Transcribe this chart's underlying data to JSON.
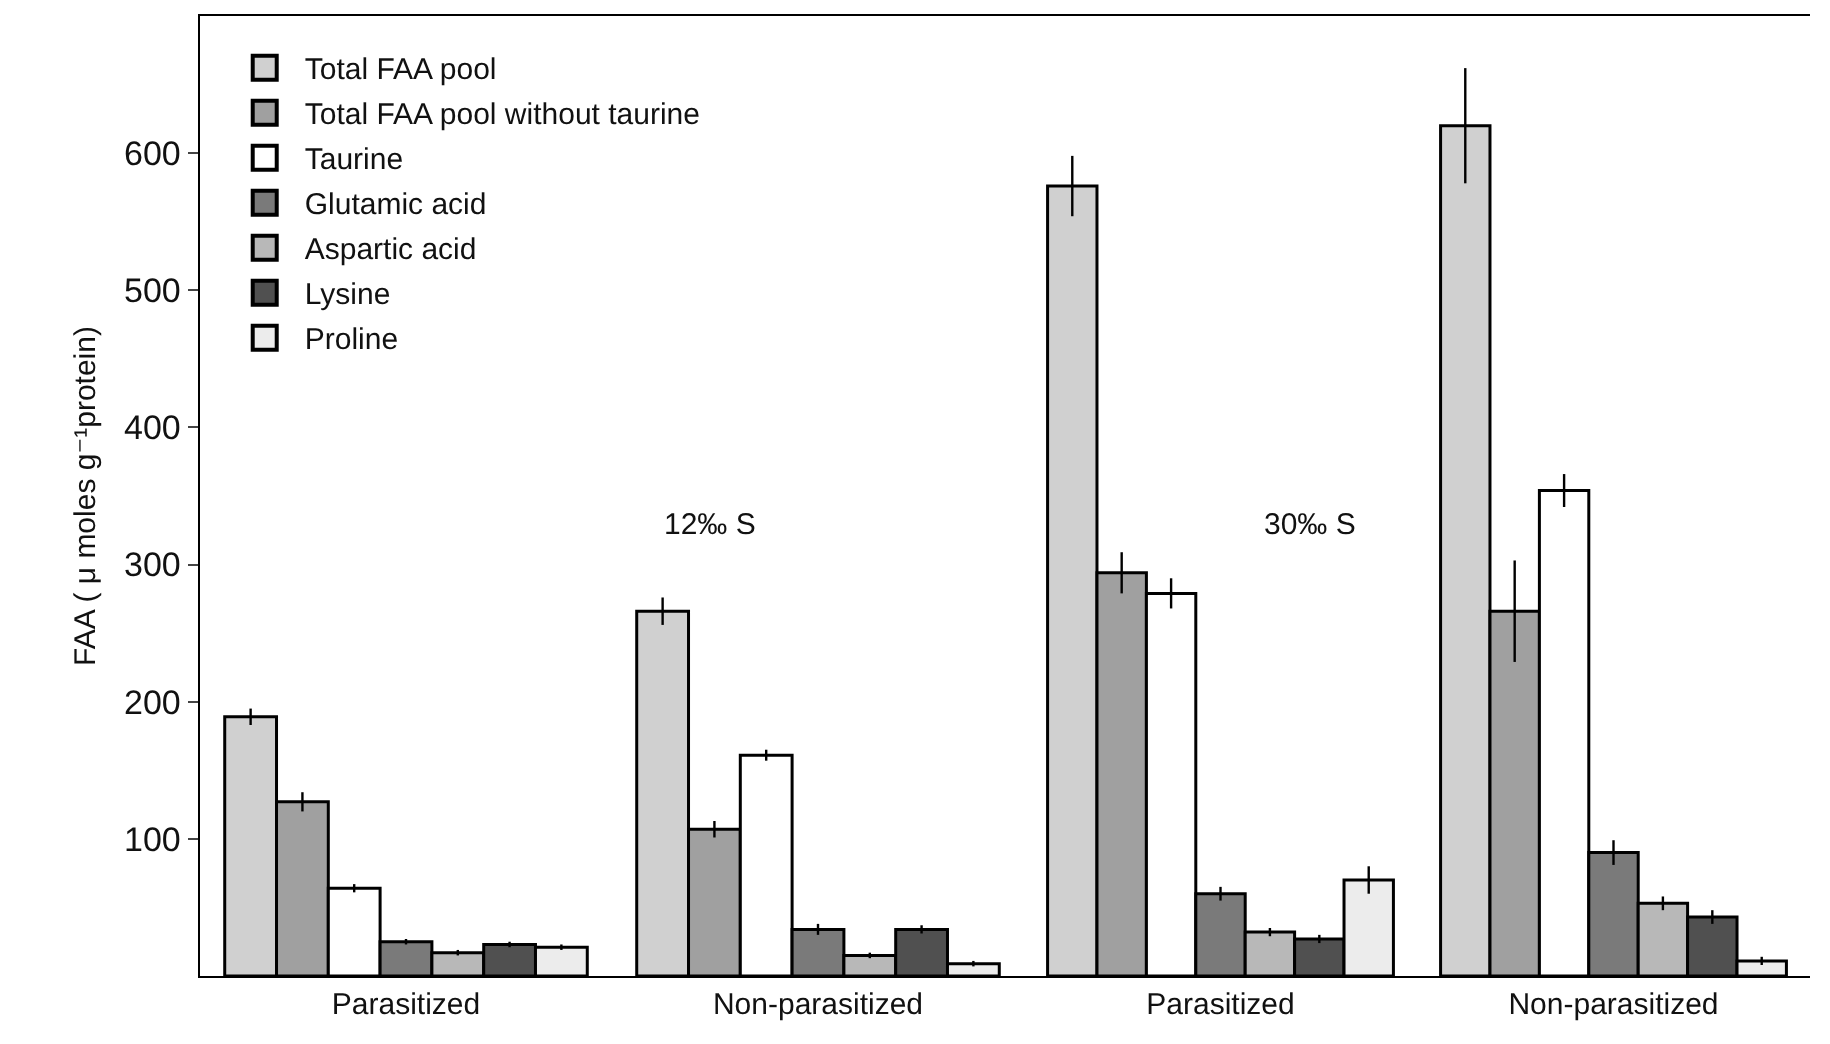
{
  "chart_data": [
    {
      "type": "bar",
      "categories": [
        "Parasitized",
        "Non-parasitized"
      ],
      "ylabel": "FAA ( μ moles g⁻¹protein)",
      "ylim": [
        0,
        700
      ],
      "yticks": [
        100,
        200,
        300,
        400,
        500,
        600
      ],
      "grid": false,
      "legend": "top left",
      "annotations": [
        "12‰ S"
      ],
      "series": [
        {
          "name": "Total FAA pool",
          "color": "#d0d0d0",
          "values": [
            189,
            266
          ],
          "errors": [
            6,
            10
          ]
        },
        {
          "name": "Total FAA pool without taurine",
          "color": "#a0a0a0",
          "values": [
            127,
            107
          ],
          "errors": [
            7,
            6
          ]
        },
        {
          "name": "Taurine",
          "color": "#ffffff",
          "values": [
            64,
            161
          ],
          "errors": [
            3,
            4
          ]
        },
        {
          "name": "Glutamic acid",
          "color": "#7a7a7a",
          "values": [
            25,
            34
          ],
          "errors": [
            2,
            4
          ]
        },
        {
          "name": "Aspartic acid",
          "color": "#b8b8b8",
          "values": [
            17,
            15
          ],
          "errors": [
            2,
            2
          ]
        },
        {
          "name": "Lysine",
          "color": "#505050",
          "values": [
            23,
            34
          ],
          "errors": [
            2,
            3
          ]
        },
        {
          "name": "Proline",
          "color": "#ececec",
          "values": [
            21,
            9
          ],
          "errors": [
            2,
            2
          ]
        }
      ]
    },
    {
      "type": "bar",
      "categories": [
        "Parasitized",
        "Non-parasitized"
      ],
      "ylim": [
        0,
        700
      ],
      "tick_labels": "x",
      "grid": false,
      "annotations": [
        "30‰ S"
      ],
      "series": [
        {
          "color": "#d0d0d0",
          "values": [
            576,
            620
          ],
          "errors": [
            22,
            42
          ]
        },
        {
          "color": "#a0a0a0",
          "values": [
            294,
            266
          ],
          "errors": [
            15,
            37
          ]
        },
        {
          "color": "#ffffff",
          "values": [
            279,
            354
          ],
          "errors": [
            11,
            12
          ]
        },
        {
          "color": "#7a7a7a",
          "values": [
            60,
            90
          ],
          "errors": [
            5,
            9
          ]
        },
        {
          "color": "#b8b8b8",
          "values": [
            32,
            53
          ],
          "errors": [
            3,
            5
          ]
        },
        {
          "color": "#505050",
          "values": [
            27,
            43
          ],
          "errors": [
            3,
            5
          ]
        },
        {
          "color": "#ececec",
          "values": [
            70,
            11
          ],
          "errors": [
            10,
            3
          ]
        }
      ]
    }
  ]
}
